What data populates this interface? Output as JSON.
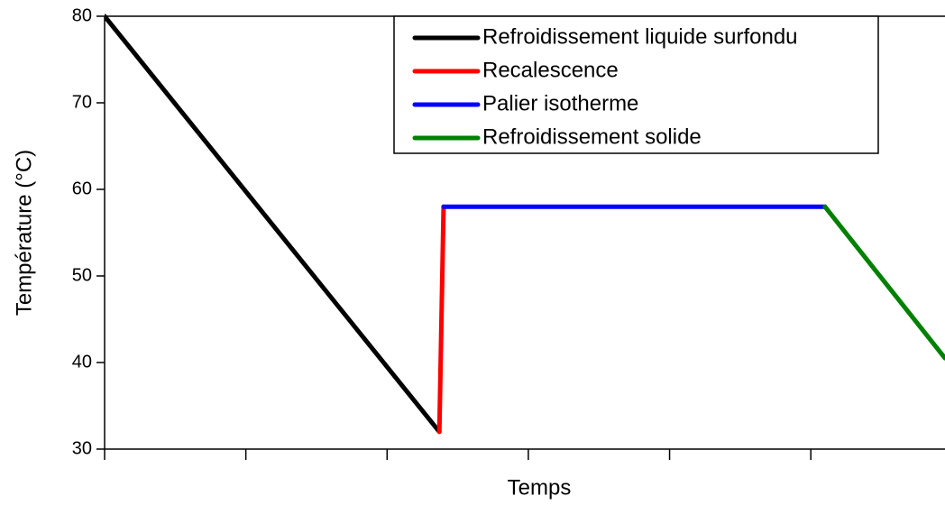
{
  "chart_data": {
    "type": "line",
    "xlabel": "Temps",
    "ylabel": "Température (°C)",
    "xlim": [
      0,
      5.95
    ],
    "xticks": [
      0,
      1,
      2,
      3,
      4,
      5
    ],
    "ylim": [
      30,
      80
    ],
    "yticks": [
      30,
      40,
      50,
      60,
      70,
      80
    ],
    "legend": "upper right",
    "series": [
      {
        "name": "Refroidissement liquide surfondu",
        "color": "#000000",
        "x": [
          0,
          2.37
        ],
        "values": [
          80,
          32
        ]
      },
      {
        "name": "Recalescence",
        "color": "#ff0000",
        "x": [
          2.37,
          2.4
        ],
        "values": [
          32,
          58
        ]
      },
      {
        "name": "Palier isotherme",
        "color": "#0000ff",
        "x": [
          2.4,
          5.1
        ],
        "values": [
          58,
          58
        ]
      },
      {
        "name": "Refroidissement solide",
        "color": "#008000",
        "x": [
          5.1,
          5.95
        ],
        "values": [
          58,
          40.5
        ]
      }
    ]
  }
}
